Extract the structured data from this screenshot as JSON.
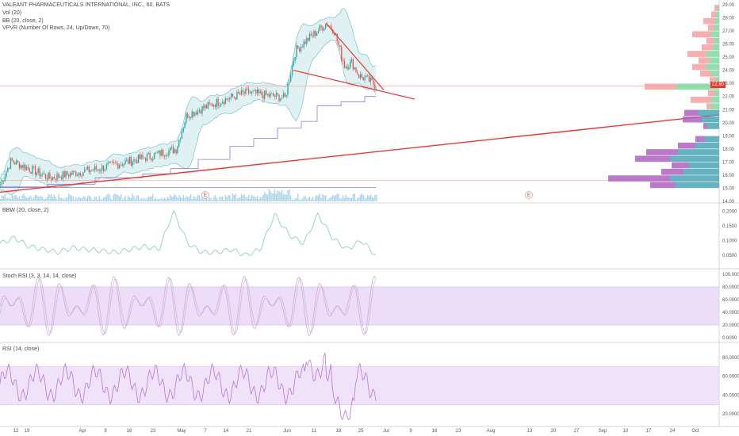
{
  "header": {
    "title": "VALEANT PHARMACEUTICALS INTERNATIONAL, INC., 60, BATS",
    "vol": "Vol (20)",
    "bb": "BB (20, close, 2)",
    "vpvr": "VPVR (Number Of Rows, 24, Up/Down, 70)"
  },
  "panes": {
    "bbw": "BBW (20, close, 2)",
    "stoch": "Stoch RSI (3, 3, 14, 14, close)",
    "rsi": "RSI (14, close)"
  },
  "colors": {
    "up": "#26a69a",
    "down": "#ef5350",
    "bb_fill": "#dff1f2",
    "bb_line": "#78c2c7",
    "trend": "#e53935",
    "vol": "#a9d4e8",
    "vpvr_up": "#7fd8a0",
    "vpvr_down": "#f4a0a0",
    "vpvr_up_va": "#4aa4b5",
    "vpvr_down_va": "#b060c0",
    "osc_band": "#e6cff5",
    "osc_line": "#b777d9",
    "bbw_line": "#7fc9c0",
    "stoch_k": "#d9a3ec",
    "stoch_d": "#bfbfbf"
  },
  "chart_data": [
    {
      "type": "candlestick",
      "title": "VALEANT PHARMACEUTICALS INTERNATIONAL, INC., 60, BATS",
      "y_ticks": [
        "29.00",
        "28.00",
        "27.00",
        "26.00",
        "25.00",
        "24.00",
        "23.00",
        "22.00",
        "21.00",
        "20.00",
        "19.00",
        "18.00",
        "17.00",
        "16.00",
        "15.00",
        "14.00"
      ],
      "ylim": [
        14.0,
        29.0
      ],
      "last_price": "22.80",
      "key_prices": [
        {
          "x": "Mar 12",
          "price": 15.3
        },
        {
          "x": "Mar 15",
          "price": 17.1
        },
        {
          "x": "Mar 26",
          "price": 15.8
        },
        {
          "x": "Apr 9",
          "price": 16.5
        },
        {
          "x": "Apr 23",
          "price": 17.4
        },
        {
          "x": "May 1",
          "price": 18.0
        },
        {
          "x": "May 4",
          "price": 20.6
        },
        {
          "x": "May 14",
          "price": 21.7
        },
        {
          "x": "May 21",
          "price": 22.3
        },
        {
          "x": "Jun 1",
          "price": 21.9
        },
        {
          "x": "Jun 4",
          "price": 25.5
        },
        {
          "x": "Jun 8",
          "price": 26.5
        },
        {
          "x": "Jun 13",
          "price": 27.6
        },
        {
          "x": "Jun 15",
          "price": 27.0
        },
        {
          "x": "Jun 18",
          "price": 24.3
        },
        {
          "x": "Jun 20",
          "price": 24.6
        },
        {
          "x": "Jun 22",
          "price": 23.6
        },
        {
          "x": "Jun 25",
          "price": 23.2
        },
        {
          "x": "Jun 27",
          "price": 22.8
        }
      ],
      "vpvr_rows": [
        {
          "price": 15.0,
          "up": 55,
          "down": 32
        },
        {
          "price": 15.5,
          "up": 62,
          "down": 78
        },
        {
          "price": 16.0,
          "up": 45,
          "down": 28
        },
        {
          "price": 16.5,
          "up": 38,
          "down": 22
        },
        {
          "price": 17.0,
          "up": 62,
          "down": 44
        },
        {
          "price": 17.5,
          "up": 52,
          "down": 40
        },
        {
          "price": 18.0,
          "up": 30,
          "down": 22
        },
        {
          "price": 18.5,
          "up": 18,
          "down": 12
        },
        {
          "price": 19.5,
          "up": 16,
          "down": 4
        },
        {
          "price": 20.0,
          "up": 22,
          "down": 24
        },
        {
          "price": 20.5,
          "up": 26,
          "down": 18
        },
        {
          "price": 21.0,
          "up": 10,
          "down": 6
        },
        {
          "price": 21.5,
          "up": 10,
          "down": 26
        },
        {
          "price": 22.0,
          "up": 6,
          "down": 8
        },
        {
          "price": 22.5,
          "up": 54,
          "down": 40
        },
        {
          "price": 23.0,
          "up": 4,
          "down": 8
        },
        {
          "price": 23.5,
          "up": 10,
          "down": 14
        },
        {
          "price": 24.0,
          "up": 16,
          "down": 18
        },
        {
          "price": 24.5,
          "up": 12,
          "down": 14
        },
        {
          "price": 25.0,
          "up": 16,
          "down": 24
        },
        {
          "price": 25.5,
          "up": 8,
          "down": 14
        },
        {
          "price": 26.0,
          "up": 6,
          "down": 10
        },
        {
          "price": 26.5,
          "up": 10,
          "down": 24
        },
        {
          "price": 27.0,
          "up": 6,
          "down": 8
        },
        {
          "price": 27.5,
          "up": 6,
          "down": 14
        },
        {
          "price": 28.0,
          "up": 4,
          "down": 6
        },
        {
          "price": 28.5,
          "up": 2,
          "down": 4
        }
      ]
    },
    {
      "type": "line",
      "title": "BBW (20, close, 2)",
      "y_ticks": [
        "0.2000",
        "0.1500",
        "0.1000",
        "0.0500"
      ],
      "ylim": [
        0.02,
        0.21
      ]
    },
    {
      "type": "line",
      "title": "Stoch RSI (3, 3, 14, 14, close)",
      "y_ticks": [
        "100.0000",
        "80.0000",
        "60.0000",
        "40.0000",
        "20.0000",
        "0.0000"
      ],
      "ylim": [
        0,
        100
      ],
      "band": [
        20,
        80
      ]
    },
    {
      "type": "line",
      "title": "RSI (14, close)",
      "y_ticks": [
        "80.0000",
        "60.0000",
        "40.0000",
        "20.0000"
      ],
      "ylim": [
        10,
        90
      ],
      "band": [
        30,
        70
      ]
    }
  ],
  "x_axis": {
    "labels": [
      "12",
      "19",
      "Apr",
      "9",
      "16",
      "23",
      "May",
      "7",
      "14",
      "21",
      "Jun",
      "11",
      "18",
      "25",
      "Jul",
      "9",
      "16",
      "23",
      "Aug",
      "13",
      "20",
      "27",
      "Sep",
      "10",
      "17",
      "24",
      "Oct"
    ]
  },
  "earnings": [
    "E",
    "E"
  ]
}
